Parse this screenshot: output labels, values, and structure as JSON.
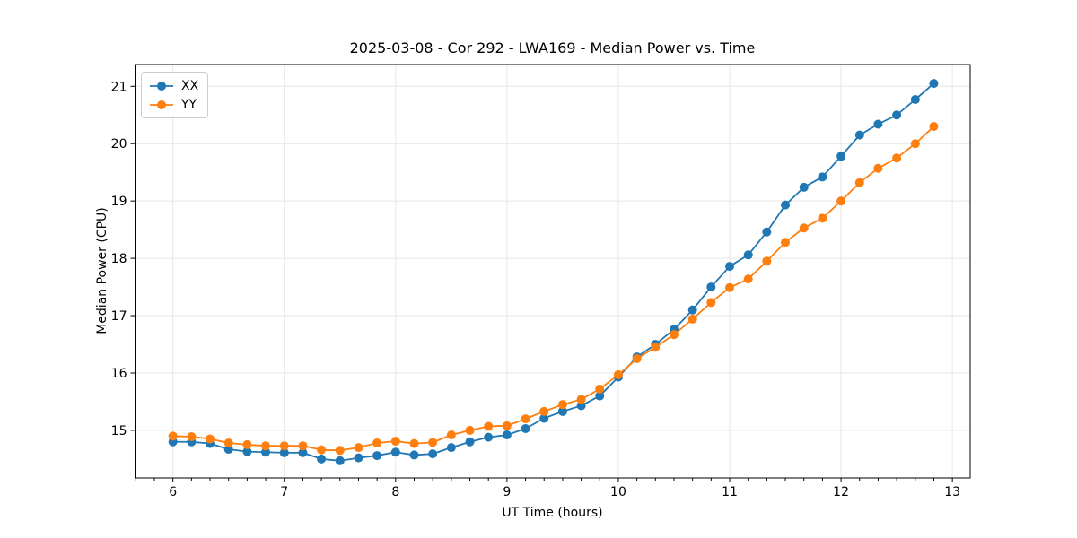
{
  "colors": {
    "grid": "#e6e6e6",
    "spine": "#000000",
    "text": "#000000",
    "background": "#ffffff",
    "series_blue": "#1f77b4",
    "series_orange": "#ff7f0e"
  },
  "chart_data": {
    "type": "line",
    "title": "2025-03-08 - Cor 292 - LWA169 - Median Power vs. Time",
    "xlabel": "UT Time (hours)",
    "ylabel": "Median Power (CPU)",
    "xlim": [
      5.66,
      13.16
    ],
    "ylim": [
      14.17,
      21.38
    ],
    "grid": true,
    "legend": {
      "position": "upper-left",
      "entries": [
        "XX",
        "YY"
      ]
    },
    "x_ticks": [
      6,
      7,
      8,
      9,
      10,
      11,
      12,
      13
    ],
    "x_tick_labels": [
      "6",
      "7",
      "8",
      "9",
      "10",
      "11",
      "12",
      "13"
    ],
    "y_ticks": [
      15,
      16,
      17,
      18,
      19,
      20,
      21
    ],
    "y_tick_labels": [
      "15",
      "16",
      "17",
      "18",
      "19",
      "20",
      "21"
    ],
    "x_minor_tick_step": 0.1666667,
    "x": [
      6.0,
      6.167,
      6.333,
      6.5,
      6.667,
      6.833,
      7.0,
      7.167,
      7.333,
      7.5,
      7.667,
      7.833,
      8.0,
      8.167,
      8.333,
      8.5,
      8.667,
      8.833,
      9.0,
      9.167,
      9.333,
      9.5,
      9.667,
      9.833,
      10.0,
      10.167,
      10.333,
      10.5,
      10.667,
      10.833,
      11.0,
      11.167,
      11.333,
      11.5,
      11.667,
      11.833,
      12.0,
      12.167,
      12.333,
      12.5,
      12.667,
      12.833
    ],
    "series": [
      {
        "name": "XX",
        "color": "#1f77b4",
        "values": [
          14.8,
          14.8,
          14.77,
          14.67,
          14.63,
          14.62,
          14.61,
          14.61,
          14.5,
          14.47,
          14.52,
          14.56,
          14.62,
          14.57,
          14.59,
          14.7,
          14.8,
          14.88,
          14.92,
          15.03,
          15.21,
          15.33,
          15.43,
          15.6,
          15.93,
          16.28,
          16.5,
          16.76,
          17.1,
          17.5,
          17.86,
          18.06,
          18.46,
          18.93,
          19.24,
          19.42,
          19.78,
          20.15,
          20.34,
          20.5,
          20.77,
          21.05
        ]
      },
      {
        "name": "YY",
        "color": "#ff7f0e",
        "values": [
          14.9,
          14.89,
          14.85,
          14.78,
          14.75,
          14.73,
          14.73,
          14.73,
          14.66,
          14.65,
          14.7,
          14.78,
          14.81,
          14.77,
          14.79,
          14.92,
          15.0,
          15.07,
          15.08,
          15.2,
          15.33,
          15.45,
          15.54,
          15.72,
          15.97,
          16.25,
          16.45,
          16.67,
          16.94,
          17.23,
          17.49,
          17.64,
          17.95,
          18.28,
          18.53,
          18.7,
          19.0,
          19.32,
          19.57,
          19.75,
          20.0,
          20.3
        ]
      }
    ]
  }
}
